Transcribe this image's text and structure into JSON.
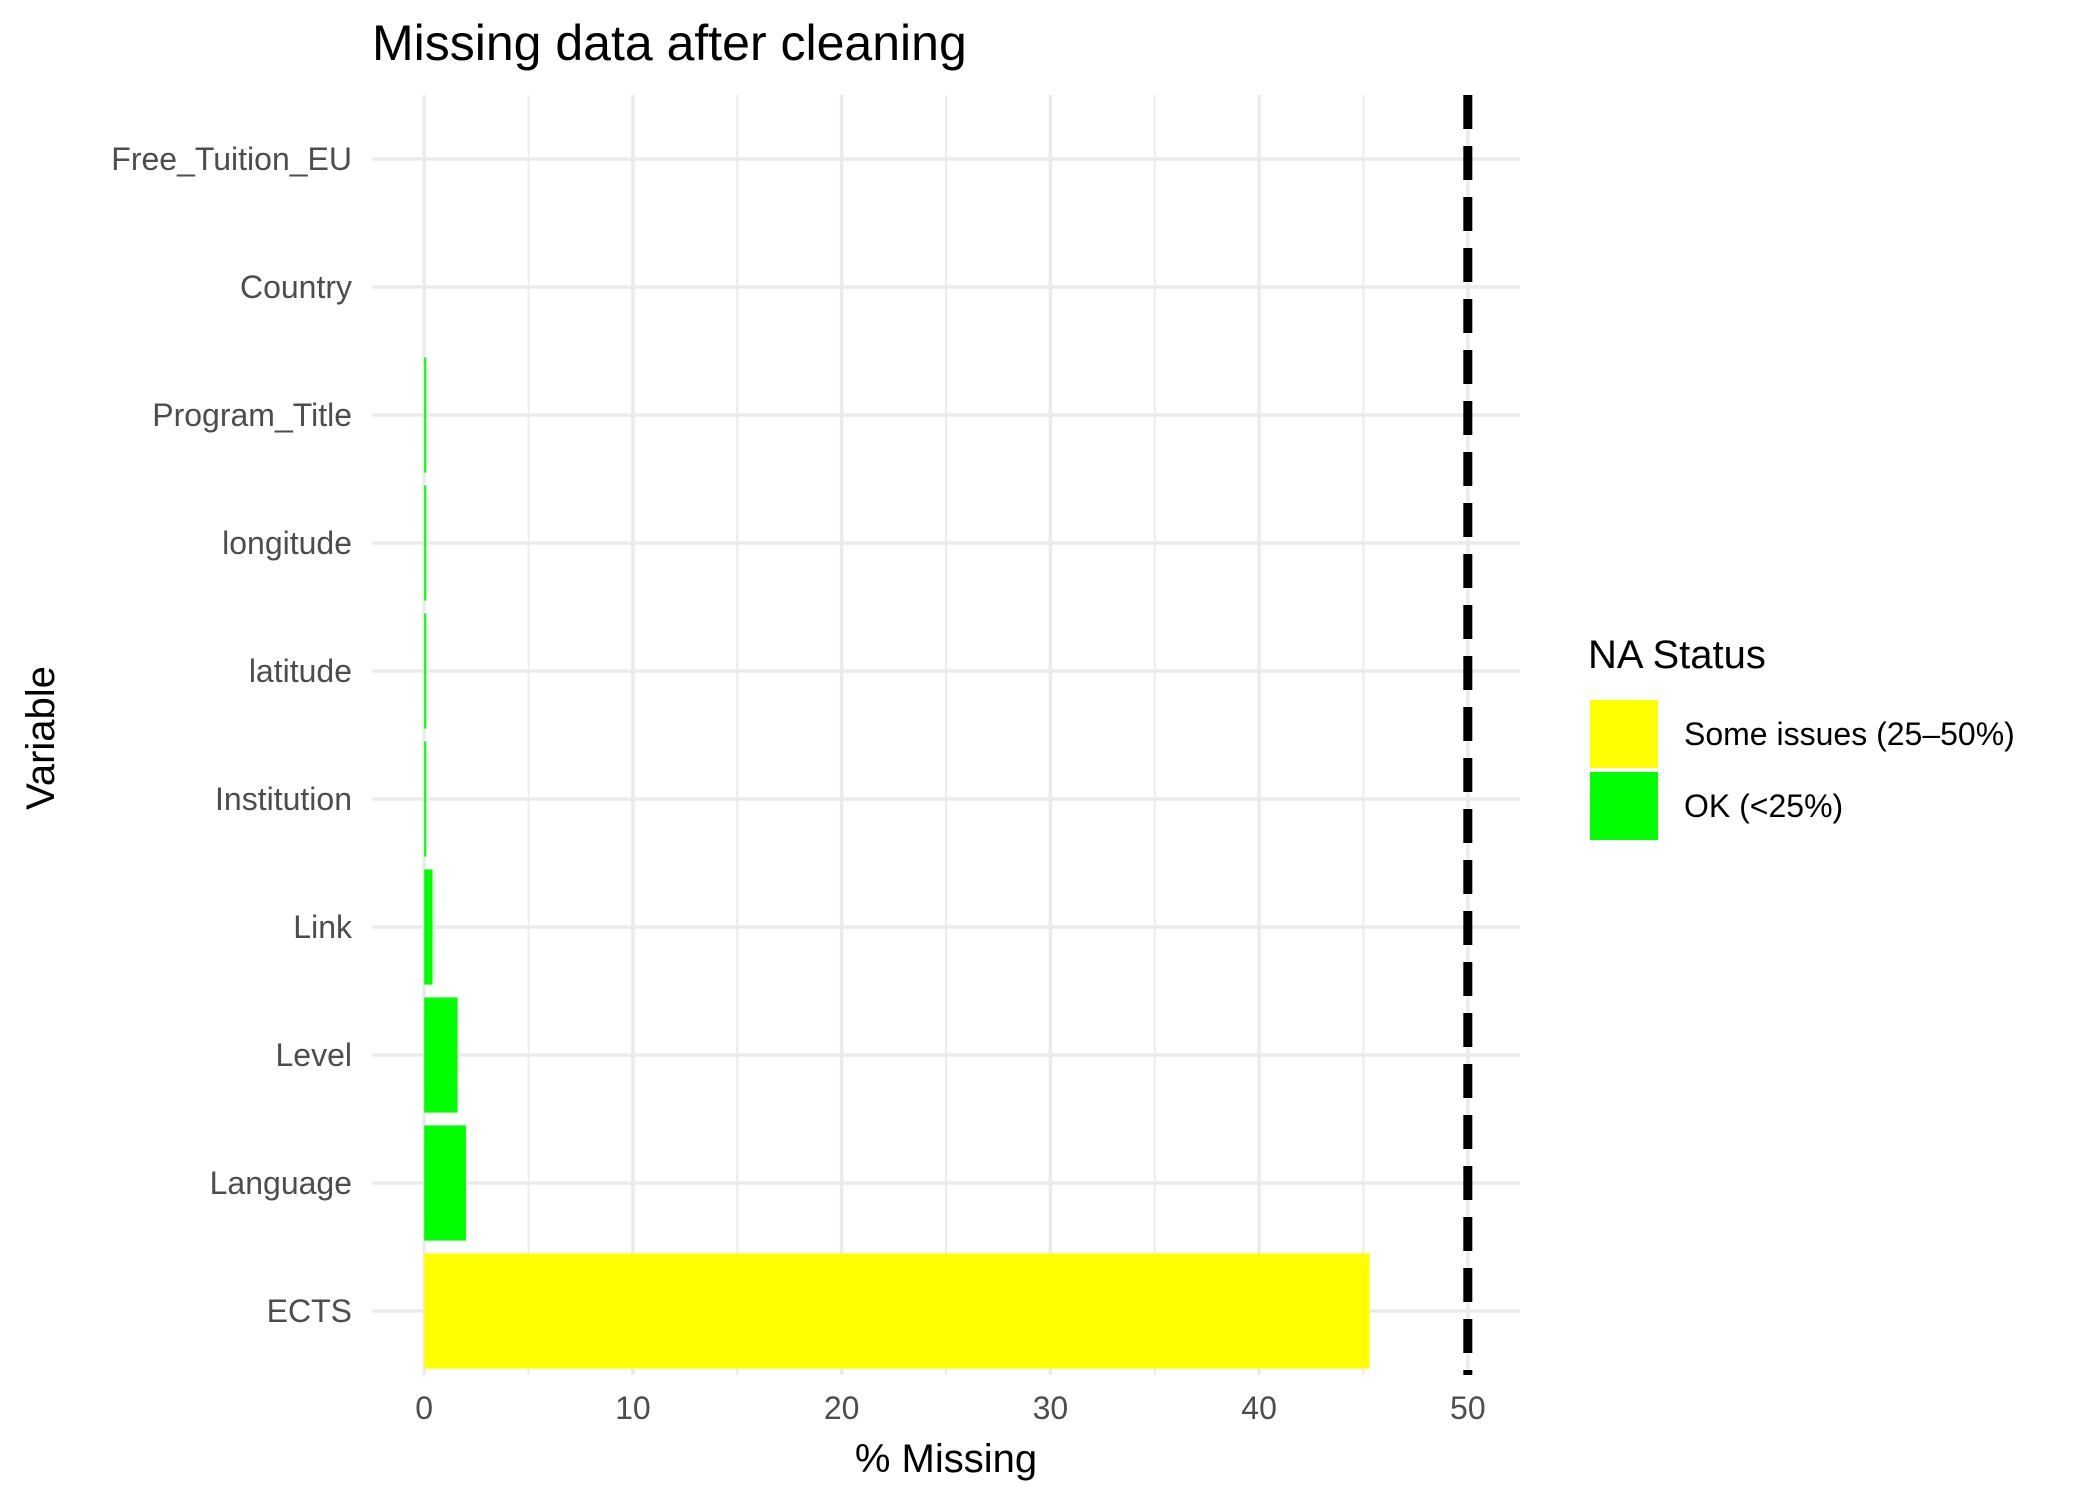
{
  "chart_data": {
    "type": "bar",
    "orientation": "horizontal",
    "title": "Missing data after cleaning",
    "xlabel": "% Missing",
    "ylabel": "Variable",
    "xlim": [
      -2.5,
      52.5
    ],
    "x_ticks": [
      0,
      10,
      20,
      30,
      40,
      50
    ],
    "grid": true,
    "categories": [
      "Free_Tuition_EU",
      "Country",
      "Program_Title",
      "longitude",
      "latitude",
      "Institution",
      "Link",
      "Level",
      "Language",
      "ECTS"
    ],
    "series": [
      {
        "values": [
          0,
          0,
          0.1,
          0.1,
          0.1,
          0.1,
          0.4,
          1.6,
          2.0,
          45.3
        ],
        "status": [
          "OK (<25%)",
          "OK (<25%)",
          "OK (<25%)",
          "OK (<25%)",
          "OK (<25%)",
          "OK (<25%)",
          "OK (<25%)",
          "OK (<25%)",
          "OK (<25%)",
          "Some issues (25–50%)"
        ]
      }
    ],
    "reference_line": {
      "x": 50,
      "style": "dashed",
      "color": "#000000"
    },
    "legend": {
      "title": "NA Status",
      "position": "right",
      "entries": [
        {
          "label": "Some issues (25–50%)",
          "color": "#ffff00"
        },
        {
          "label": "OK (<25%)",
          "color": "#00ff00"
        }
      ]
    }
  }
}
